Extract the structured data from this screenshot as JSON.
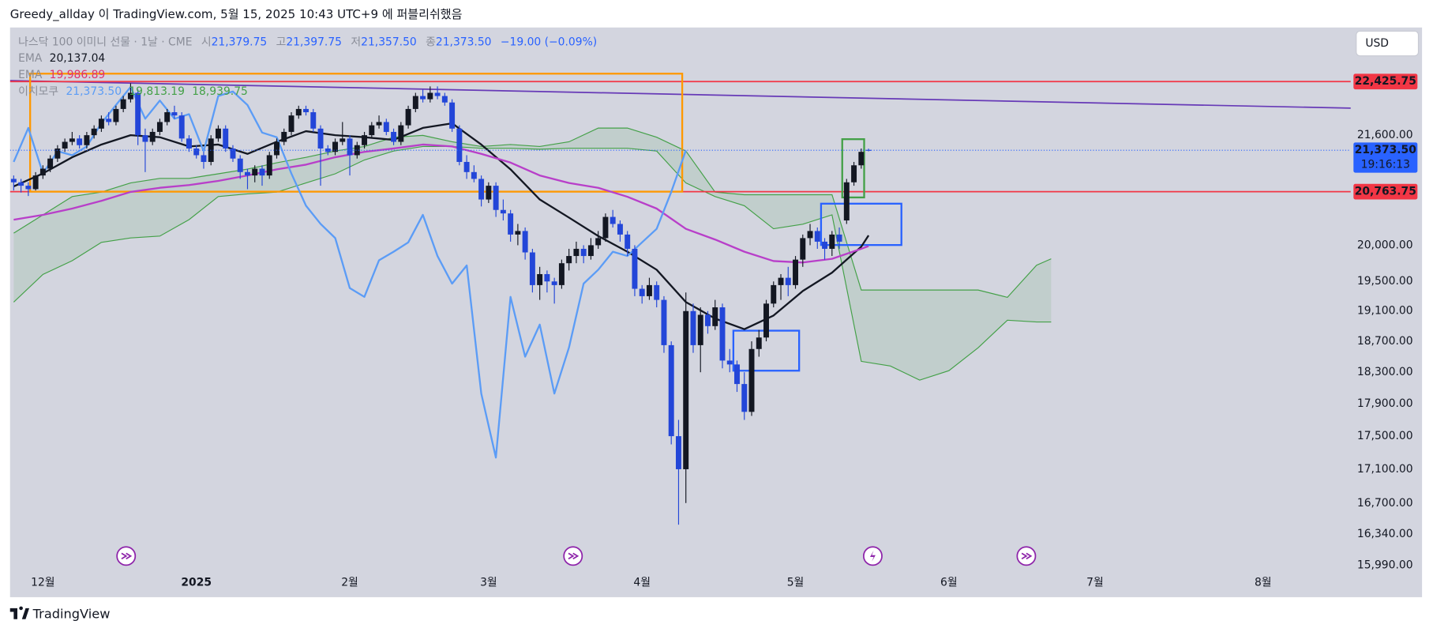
{
  "header": {
    "attribution": "Greedy_allday 이 TradingView.com, 5월 15, 2025 10:43 UTC+9 에 퍼블리쉬했음"
  },
  "footer": {
    "brand": "TradingView"
  },
  "chart_data": {
    "type": "candlestick",
    "title": "나스닥 100 이미니 선물 · 1날 · CME",
    "legend": {
      "open_label": "시",
      "open": "21,379.75",
      "high_label": "고",
      "high": "21,397.75",
      "low_label": "저",
      "low": "21,357.50",
      "close_label": "종",
      "close": "21,373.50",
      "change": "−19.00 (−0.09%)"
    },
    "currency": "USD",
    "countdown": "19:16:13",
    "log_scale": true,
    "grid": false,
    "up_color": "#131722",
    "down_color": "#2346d8",
    "xlim": [
      -0.5,
      183
    ],
    "xticks": [
      {
        "value": 4,
        "label": "12월"
      },
      {
        "value": 25,
        "label": "2025"
      },
      {
        "value": 46,
        "label": "2월"
      },
      {
        "value": 65,
        "label": "3월"
      },
      {
        "value": 86,
        "label": "4월"
      },
      {
        "value": 107,
        "label": "5월"
      },
      {
        "value": 128,
        "label": "6월"
      },
      {
        "value": 148,
        "label": "7월"
      },
      {
        "value": 171,
        "label": "8월"
      }
    ],
    "ylim": [
      15646,
      23290
    ],
    "yticks": [
      {
        "value": 21600,
        "label": "21,600.00"
      },
      {
        "value": 20000,
        "label": "20,000.00"
      },
      {
        "value": 19500,
        "label": "19,500.00"
      },
      {
        "value": 19100,
        "label": "19,100.00"
      },
      {
        "value": 18700,
        "label": "18,700.00"
      },
      {
        "value": 18300,
        "label": "18,300.00"
      },
      {
        "value": 17900,
        "label": "17,900.00"
      },
      {
        "value": 17500,
        "label": "17,500.00"
      },
      {
        "value": 17100,
        "label": "17,100.00"
      },
      {
        "value": 16700,
        "label": "16,700.00"
      },
      {
        "value": 16340,
        "label": "16,340.00"
      },
      {
        "value": 15990,
        "label": "15,990.00"
      }
    ],
    "ohlc": [
      [
        20950,
        21000,
        20780,
        20900
      ],
      [
        20900,
        20950,
        20750,
        20850
      ],
      [
        20850,
        20900,
        20700,
        20800
      ],
      [
        20800,
        21050,
        20780,
        21000
      ],
      [
        21000,
        21150,
        20950,
        21100
      ],
      [
        21100,
        21300,
        21050,
        21250
      ],
      [
        21250,
        21450,
        21200,
        21400
      ],
      [
        21400,
        21550,
        21350,
        21500
      ],
      [
        21500,
        21650,
        21450,
        21550
      ],
      [
        21550,
        21600,
        21400,
        21450
      ],
      [
        21450,
        21650,
        21400,
        21600
      ],
      [
        21600,
        21750,
        21550,
        21700
      ],
      [
        21700,
        21900,
        21650,
        21850
      ],
      [
        21850,
        21950,
        21750,
        21800
      ],
      [
        21800,
        22050,
        21750,
        22000
      ],
      [
        22000,
        22200,
        21950,
        22150
      ],
      [
        22150,
        22400,
        22100,
        22250
      ],
      [
        22250,
        22300,
        21450,
        21600
      ],
      [
        21600,
        21700,
        21050,
        21500
      ],
      [
        21500,
        21700,
        21450,
        21650
      ],
      [
        21650,
        21850,
        21600,
        21800
      ],
      [
        21800,
        22000,
        21750,
        21950
      ],
      [
        21950,
        22050,
        21850,
        21900
      ],
      [
        21900,
        21950,
        21500,
        21550
      ],
      [
        21550,
        21600,
        21350,
        21400
      ],
      [
        21400,
        21450,
        21250,
        21300
      ],
      [
        21300,
        21350,
        21100,
        21200
      ],
      [
        21200,
        21600,
        21150,
        21550
      ],
      [
        21550,
        21750,
        21500,
        21700
      ],
      [
        21700,
        21750,
        21350,
        21400
      ],
      [
        21400,
        21450,
        21200,
        21250
      ],
      [
        21250,
        21300,
        20950,
        21050
      ],
      [
        21050,
        21100,
        20800,
        21000
      ],
      [
        21000,
        21150,
        20900,
        21100
      ],
      [
        21100,
        21150,
        20850,
        21000
      ],
      [
        21000,
        21350,
        20950,
        21300
      ],
      [
        21300,
        21550,
        21250,
        21500
      ],
      [
        21500,
        21700,
        21450,
        21650
      ],
      [
        21650,
        21950,
        21600,
        21900
      ],
      [
        21900,
        22050,
        21850,
        22000
      ],
      [
        22000,
        22050,
        21900,
        21950
      ],
      [
        21950,
        22000,
        21650,
        21700
      ],
      [
        21700,
        21750,
        20850,
        21400
      ],
      [
        21400,
        21450,
        21300,
        21350
      ],
      [
        21350,
        21550,
        21300,
        21500
      ],
      [
        21500,
        21800,
        21450,
        21550
      ],
      [
        21550,
        21600,
        21000,
        21300
      ],
      [
        21300,
        21500,
        21250,
        21450
      ],
      [
        21450,
        21650,
        21400,
        21600
      ],
      [
        21600,
        21800,
        21550,
        21750
      ],
      [
        21750,
        21900,
        21700,
        21800
      ],
      [
        21800,
        21850,
        21600,
        21650
      ],
      [
        21650,
        21700,
        21450,
        21500
      ],
      [
        21500,
        21800,
        21450,
        21750
      ],
      [
        21750,
        22050,
        21700,
        22000
      ],
      [
        22000,
        22250,
        21950,
        22200
      ],
      [
        22200,
        22300,
        22100,
        22150
      ],
      [
        22150,
        22350,
        22100,
        22250
      ],
      [
        22250,
        22350,
        22150,
        22200
      ],
      [
        22200,
        22250,
        22050,
        22100
      ],
      [
        22100,
        22150,
        21650,
        21700
      ],
      [
        21700,
        21750,
        21150,
        21200
      ],
      [
        21200,
        21300,
        20950,
        21050
      ],
      [
        21050,
        21150,
        20900,
        20950
      ],
      [
        20950,
        21000,
        20550,
        20650
      ],
      [
        20650,
        20900,
        20600,
        20850
      ],
      [
        20850,
        20900,
        20400,
        20500
      ],
      [
        20500,
        20650,
        20350,
        20450
      ],
      [
        20450,
        20500,
        20050,
        20150
      ],
      [
        20150,
        20300,
        20000,
        20200
      ],
      [
        20200,
        20250,
        19800,
        19900
      ],
      [
        19900,
        19950,
        19350,
        19450
      ],
      [
        19450,
        19700,
        19250,
        19600
      ],
      [
        19600,
        19650,
        19350,
        19500
      ],
      [
        19500,
        19550,
        19200,
        19450
      ],
      [
        19450,
        19800,
        19400,
        19750
      ],
      [
        19750,
        19950,
        19650,
        19850
      ],
      [
        19850,
        20050,
        19750,
        19950
      ],
      [
        19950,
        20000,
        19750,
        19850
      ],
      [
        19850,
        20100,
        19800,
        20000
      ],
      [
        20000,
        20200,
        19950,
        20100
      ],
      [
        20100,
        20450,
        20050,
        20400
      ],
      [
        20400,
        20500,
        20250,
        20300
      ],
      [
        20300,
        20350,
        20050,
        20150
      ],
      [
        20150,
        20200,
        19850,
        19950
      ],
      [
        19950,
        20000,
        19300,
        19400
      ],
      [
        19400,
        19450,
        19200,
        19300
      ],
      [
        19300,
        19550,
        19250,
        19450
      ],
      [
        19450,
        19500,
        19150,
        19250
      ],
      [
        19250,
        19300,
        18550,
        18650
      ],
      [
        18650,
        18700,
        17400,
        17500
      ],
      [
        17500,
        17700,
        16450,
        17100
      ],
      [
        17100,
        19350,
        16700,
        19100
      ],
      [
        19100,
        19200,
        18550,
        18650
      ],
      [
        18650,
        19150,
        18300,
        19050
      ],
      [
        19050,
        19100,
        18800,
        18900
      ],
      [
        18900,
        19250,
        18850,
        19150
      ],
      [
        19150,
        19200,
        18350,
        18450
      ],
      [
        18450,
        18600,
        18300,
        18400
      ],
      [
        18400,
        18450,
        18050,
        18150
      ],
      [
        18150,
        18300,
        17700,
        17800
      ],
      [
        17800,
        18700,
        17750,
        18600
      ],
      [
        18600,
        18850,
        18500,
        18750
      ],
      [
        18750,
        19250,
        18700,
        19200
      ],
      [
        19200,
        19500,
        19150,
        19450
      ],
      [
        19450,
        19600,
        19250,
        19550
      ],
      [
        19550,
        19700,
        19300,
        19450
      ],
      [
        19450,
        19850,
        19400,
        19800
      ],
      [
        19800,
        20150,
        19700,
        20100
      ],
      [
        20100,
        20300,
        20000,
        20200
      ],
      [
        20200,
        20250,
        19950,
        20050
      ],
      [
        20050,
        20100,
        19800,
        19950
      ],
      [
        19950,
        20200,
        19850,
        20150
      ],
      [
        20150,
        20250,
        19950,
        20050
      ],
      [
        20350,
        20950,
        20300,
        20900
      ],
      [
        20900,
        21200,
        20850,
        21150
      ],
      [
        21150,
        21400,
        21100,
        21350
      ],
      [
        21379.75,
        21397.75,
        21357.5,
        21373.5
      ]
    ],
    "series": [
      {
        "name": "EMA",
        "color": "#131722",
        "legend_values": [
          "20,137.04"
        ],
        "x": [
          0,
          4,
          8,
          12,
          16,
          20,
          24,
          28,
          32,
          36,
          40,
          44,
          48,
          52,
          56,
          60,
          64,
          68,
          72,
          76,
          80,
          84,
          88,
          92,
          96,
          100,
          104,
          108,
          112,
          116,
          117
        ],
        "values": [
          20840,
          21030,
          21270,
          21460,
          21600,
          21570,
          21430,
          21460,
          21320,
          21500,
          21660,
          21600,
          21570,
          21530,
          21710,
          21780,
          21460,
          21090,
          20650,
          20390,
          20130,
          19910,
          19660,
          19220,
          19000,
          18860,
          19040,
          19370,
          19620,
          19980,
          20137.04
        ]
      },
      {
        "name": "EMA",
        "color": "#b83fc9",
        "legend_color": "#e0316e",
        "legend_values": [
          "19,986.89"
        ],
        "x": [
          0,
          4,
          8,
          12,
          16,
          20,
          24,
          28,
          32,
          36,
          40,
          44,
          48,
          52,
          56,
          60,
          64,
          68,
          72,
          76,
          80,
          84,
          88,
          92,
          96,
          100,
          104,
          108,
          112,
          116,
          117
        ],
        "values": [
          20360,
          20430,
          20520,
          20630,
          20760,
          20820,
          20860,
          20920,
          21000,
          21090,
          21160,
          21270,
          21350,
          21400,
          21460,
          21430,
          21320,
          21190,
          21000,
          20890,
          20820,
          20690,
          20520,
          20230,
          20080,
          19910,
          19780,
          19760,
          19810,
          19950,
          19986.89
        ]
      },
      {
        "name": "이치모쿠",
        "color": "#5b9cf6",
        "legend_colors": [
          "#5b9cf6",
          "#43a047",
          "#43a047"
        ],
        "legend_values": [
          "21,373.50",
          "19,813.19",
          "18,939.75"
        ],
        "x": [
          0,
          2,
          4,
          6,
          8,
          10,
          12,
          14,
          16,
          18,
          20,
          22,
          24,
          26,
          28,
          30,
          32,
          34,
          36,
          38,
          40,
          42,
          44,
          46,
          48,
          50,
          52,
          54,
          56,
          58,
          60,
          62,
          64,
          66,
          68,
          70,
          72,
          74,
          76,
          78,
          80,
          82,
          84,
          86,
          88,
          90,
          92
        ],
        "values": [
          21200,
          21710,
          21030,
          21360,
          21300,
          21430,
          21780,
          22060,
          22340,
          21850,
          22130,
          21850,
          21920,
          21360,
          22200,
          22270,
          22060,
          21640,
          21570,
          21030,
          20560,
          20300,
          20100,
          19410,
          19290,
          19790,
          19910,
          20040,
          20430,
          19850,
          19470,
          19720,
          18030,
          17240,
          19290,
          18500,
          18920,
          18030,
          18620,
          19470,
          19660,
          19910,
          19850,
          20040,
          20230,
          20760,
          21373.5
        ]
      }
    ],
    "cloud": {
      "color": "#43a047",
      "x": [
        0,
        4,
        8,
        12,
        16,
        20,
        24,
        28,
        32,
        36,
        40,
        44,
        48,
        52,
        56,
        60,
        64,
        68,
        72,
        76,
        80,
        84,
        88,
        92,
        96,
        100,
        104,
        108,
        112,
        116,
        120,
        124,
        128,
        132,
        136,
        140,
        142
      ],
      "upper": [
        20170,
        20430,
        20692,
        20758,
        20891,
        20958,
        20958,
        21025,
        21093,
        21187,
        21268,
        21362,
        21431,
        21570,
        21597,
        21500,
        21431,
        21460,
        21431,
        21500,
        21708,
        21708,
        21570,
        21362,
        20758,
        20719,
        20719,
        20719,
        20719,
        19383,
        19383,
        19383,
        19383,
        19383,
        19284,
        19722,
        19810
      ],
      "lower": [
        19220,
        19596,
        19785,
        20040,
        20103,
        20128,
        20362,
        20692,
        20731,
        20758,
        20891,
        21025,
        21228,
        21362,
        21431,
        21431,
        21403,
        21403,
        21390,
        21403,
        21403,
        21403,
        21362,
        20891,
        20692,
        20560,
        20232,
        20297,
        20430,
        18440,
        18380,
        18200,
        18320,
        18617,
        18978,
        18955,
        18955
      ]
    },
    "trendline": {
      "color": "#673ab7",
      "x": [
        -0.5,
        183
      ],
      "values": [
        22440,
        22013
      ]
    },
    "hlines": [
      {
        "value": 22425.75,
        "label": "22,425.75",
        "color": "#f23645"
      },
      {
        "value": 20763.75,
        "label": "20,763.75",
        "color": "#f23645"
      }
    ],
    "last_price": {
      "value": 21373.5,
      "label": "21,373.50",
      "color": "#2962ff"
    },
    "boxes": [
      {
        "color": "#ff9800",
        "x": [
          2.25,
          91.5
        ],
        "y": [
          20763.75,
          22550
        ]
      },
      {
        "color": "#43a047",
        "x": [
          113.4,
          116.4
        ],
        "y": [
          20680,
          21540
        ]
      },
      {
        "color": "#2962ff",
        "x": [
          110.5,
          121.5
        ],
        "y": [
          20003,
          20590
        ]
      },
      {
        "color": "#2962ff",
        "x": [
          98.5,
          107.5
        ],
        "y": [
          18320,
          18840
        ]
      }
    ]
  }
}
